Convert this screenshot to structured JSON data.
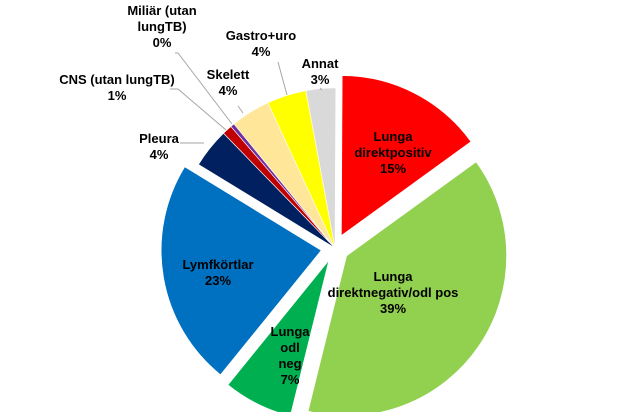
{
  "chart_data": {
    "type": "pie",
    "slices": [
      {
        "label": "Lunga direktpositiv",
        "value": 15,
        "percent_label": "15%",
        "color": "#ff0000"
      },
      {
        "label": "Lunga direktnegativ/odl pos",
        "value": 39,
        "percent_label": "39%",
        "color": "#92d050"
      },
      {
        "label": "Lunga odl neg",
        "value": 7,
        "percent_label": "7%",
        "color": "#00b050"
      },
      {
        "label": "Lymfkörtlar",
        "value": 23,
        "percent_label": "23%",
        "color": "#0070c0"
      },
      {
        "label": "Pleura",
        "value": 4,
        "percent_label": "4%",
        "color": "#002060"
      },
      {
        "label": "CNS (utan lungTB)",
        "value": 1,
        "percent_label": "1%",
        "color": "#c00000"
      },
      {
        "label": "Miliär (utan lungTB)",
        "value": 0,
        "percent_label": "0%",
        "color": "#7030a0"
      },
      {
        "label": "Skelett",
        "value": 4,
        "percent_label": "4%",
        "color": "#ffe699"
      },
      {
        "label": "Gastro+uro",
        "value": 4,
        "percent_label": "4%",
        "color": "#ffff00"
      },
      {
        "label": "Annat",
        "value": 3,
        "percent_label": "3%",
        "color": "#d9d9d9"
      }
    ]
  }
}
